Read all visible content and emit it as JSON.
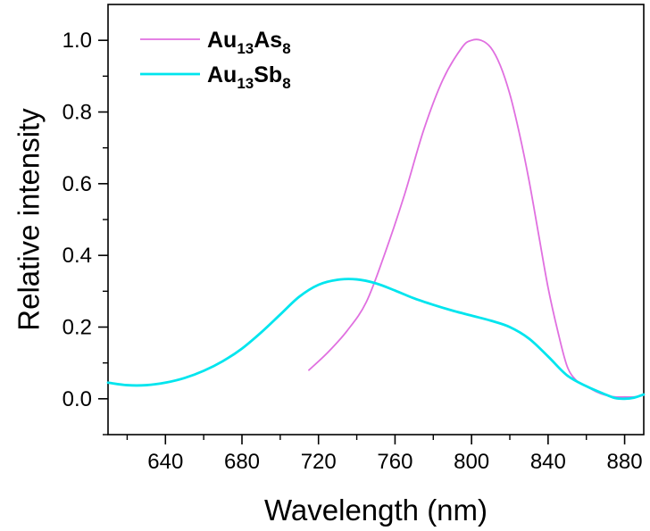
{
  "chart_data": {
    "type": "line",
    "xlabel": "Wavelength (nm)",
    "ylabel": "Relative intensity",
    "xlim": [
      610,
      890
    ],
    "ylim": [
      -0.1,
      1.1
    ],
    "x_ticks": [
      640,
      680,
      720,
      760,
      800,
      840,
      880
    ],
    "x_tick_labels": [
      "640",
      "680",
      "720",
      "760",
      "800",
      "840",
      "880"
    ],
    "y_ticks": [
      0.0,
      0.2,
      0.4,
      0.6,
      0.8,
      1.0
    ],
    "y_tick_labels": [
      "0.0",
      "0.2",
      "0.4",
      "0.6",
      "0.8",
      "1.0"
    ],
    "grid": false,
    "legend_position": "top-left",
    "series": [
      {
        "name": "Au13As8",
        "legend": {
          "base1": "Au",
          "sub1": "13",
          "base2": "As",
          "sub2": "8"
        },
        "color": "#e070e0",
        "x": [
          715,
          725,
          735,
          745,
          755,
          765,
          775,
          785,
          795,
          800,
          805,
          810,
          815,
          820,
          825,
          830,
          835,
          840,
          845,
          850,
          855,
          860,
          865,
          870,
          875,
          880,
          885,
          890
        ],
        "y": [
          0.08,
          0.13,
          0.19,
          0.27,
          0.41,
          0.57,
          0.75,
          0.89,
          0.98,
          1.0,
          1.0,
          0.98,
          0.93,
          0.85,
          0.74,
          0.61,
          0.46,
          0.31,
          0.19,
          0.09,
          0.05,
          0.035,
          0.02,
          0.01,
          0.005,
          0.005,
          0.005,
          0.01
        ]
      },
      {
        "name": "Au13Sb8",
        "legend": {
          "base1": "Au",
          "sub1": "13",
          "base2": "Sb",
          "sub2": "8"
        },
        "color": "#00e5ee",
        "x": [
          610,
          620,
          630,
          640,
          650,
          660,
          670,
          680,
          690,
          700,
          710,
          720,
          730,
          740,
          750,
          760,
          770,
          780,
          790,
          800,
          810,
          820,
          830,
          840,
          850,
          860,
          870,
          875,
          880,
          885,
          890
        ],
        "y": [
          0.045,
          0.038,
          0.038,
          0.045,
          0.058,
          0.078,
          0.105,
          0.14,
          0.185,
          0.235,
          0.285,
          0.318,
          0.332,
          0.333,
          0.322,
          0.302,
          0.28,
          0.262,
          0.246,
          0.232,
          0.218,
          0.2,
          0.168,
          0.118,
          0.065,
          0.035,
          0.012,
          0.002,
          0.0,
          0.003,
          0.012
        ]
      }
    ]
  }
}
